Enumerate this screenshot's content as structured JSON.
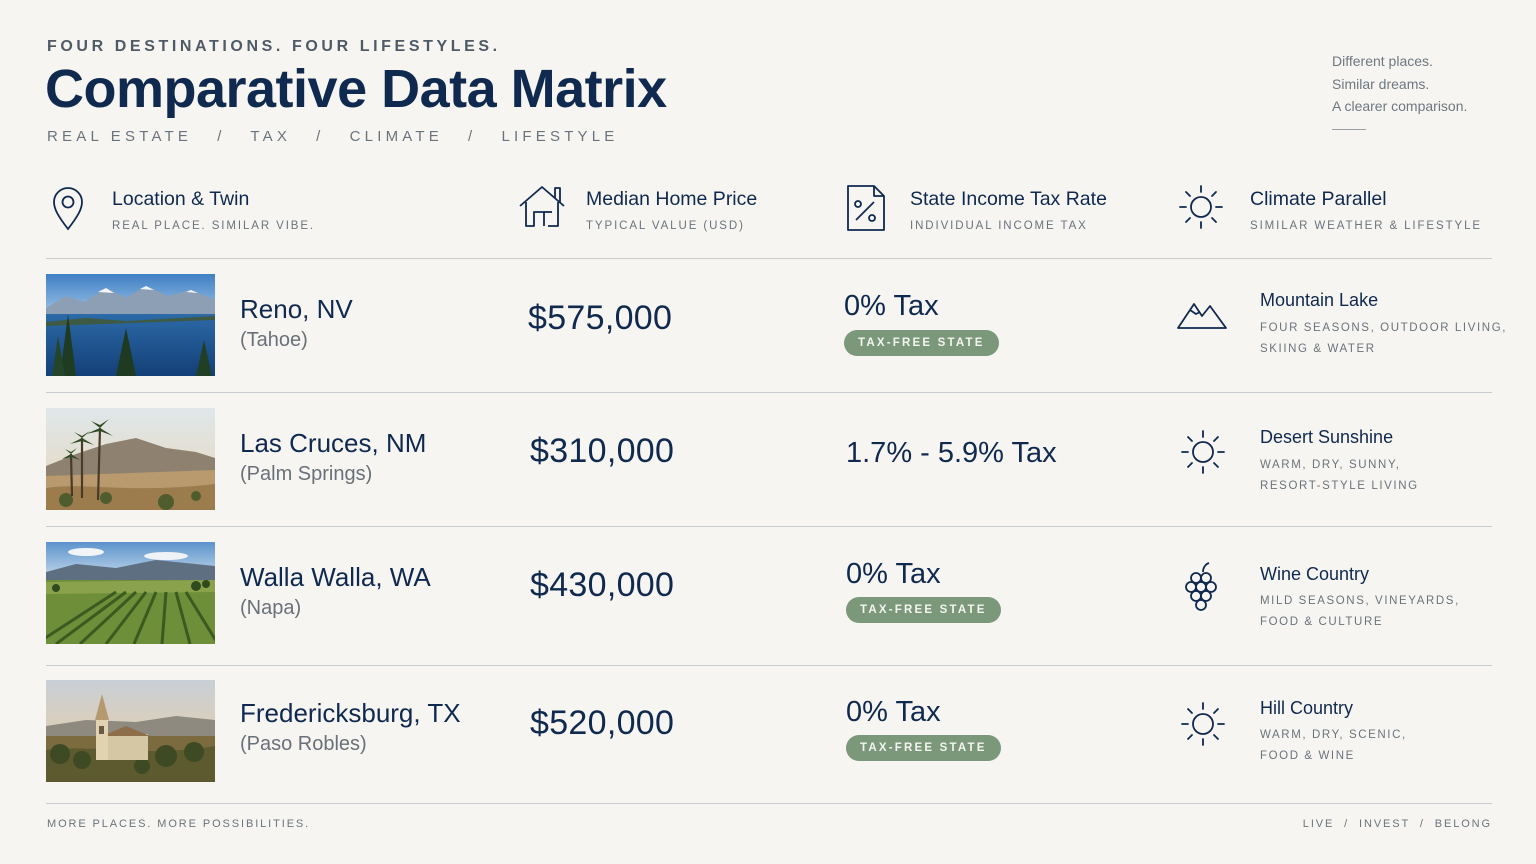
{
  "header": {
    "eyebrow": "FOUR DESTINATIONS. FOUR LIFESTYLES.",
    "title": "Comparative Data Matrix",
    "subline": "REAL ESTATE   /   TAX   /   CLIMATE   /   LIFESTYLE",
    "tagline": [
      "Different places.",
      "Similar dreams.",
      "A clearer comparison."
    ]
  },
  "columns": [
    {
      "title": "Location & Twin",
      "subtitle": "REAL PLACE. SIMILAR VIBE.",
      "icon": "map-pin-icon"
    },
    {
      "title": "Median Home Price",
      "subtitle": "TYPICAL VALUE (USD)",
      "icon": "house-icon"
    },
    {
      "title": "State Income Tax Rate",
      "subtitle": "INDIVIDUAL INCOME TAX",
      "icon": "percent-document-icon"
    },
    {
      "title": "Climate Parallel",
      "subtitle": "SIMILAR WEATHER & LIFESTYLE",
      "icon": "sun-icon"
    }
  ],
  "rows": [
    {
      "city": "Reno, NV",
      "twin": "(Tahoe)",
      "image": "mountain-lake-photo",
      "price": "$575,000",
      "tax": "0% Tax",
      "badge": "TAX-FREE STATE",
      "climate_icon": "mountain-icon",
      "climate_title": "Mountain Lake",
      "climate_desc": [
        "FOUR SEASONS, OUTDOOR LIVING,",
        "SKIING & WATER"
      ]
    },
    {
      "city": "Las Cruces, NM",
      "twin": "(Palm Springs)",
      "image": "desert-palms-photo",
      "price": "$310,000",
      "tax": "1.7% - 5.9% Tax",
      "badge": "",
      "climate_icon": "sun-icon",
      "climate_title": "Desert Sunshine",
      "climate_desc": [
        "WARM, DRY, SUNNY,",
        "RESORT-STYLE LIVING"
      ]
    },
    {
      "city": "Walla Walla, WA",
      "twin": "(Napa)",
      "image": "vineyard-photo",
      "price": "$430,000",
      "tax": "0% Tax",
      "badge": "TAX-FREE STATE",
      "climate_icon": "grapes-icon",
      "climate_title": "Wine Country",
      "climate_desc": [
        "MILD SEASONS, VINEYARDS,",
        "FOOD & CULTURE"
      ]
    },
    {
      "city": "Fredericksburg, TX",
      "twin": "(Paso Robles)",
      "image": "hill-country-church-photo",
      "price": "$520,000",
      "tax": "0% Tax",
      "badge": "TAX-FREE STATE",
      "climate_icon": "sun-icon",
      "climate_title": "Hill Country",
      "climate_desc": [
        "WARM, DRY, SCENIC,",
        "FOOD & WINE"
      ]
    }
  ],
  "footer": {
    "left": "MORE PLACES. MORE POSSIBILITIES.",
    "right": "LIVE  /  INVEST  /  BELONG"
  },
  "colors": {
    "navy": "#10294f",
    "background": "#f6f5f1",
    "badge_green": "#7b987a",
    "muted_text": "#6b737d"
  }
}
